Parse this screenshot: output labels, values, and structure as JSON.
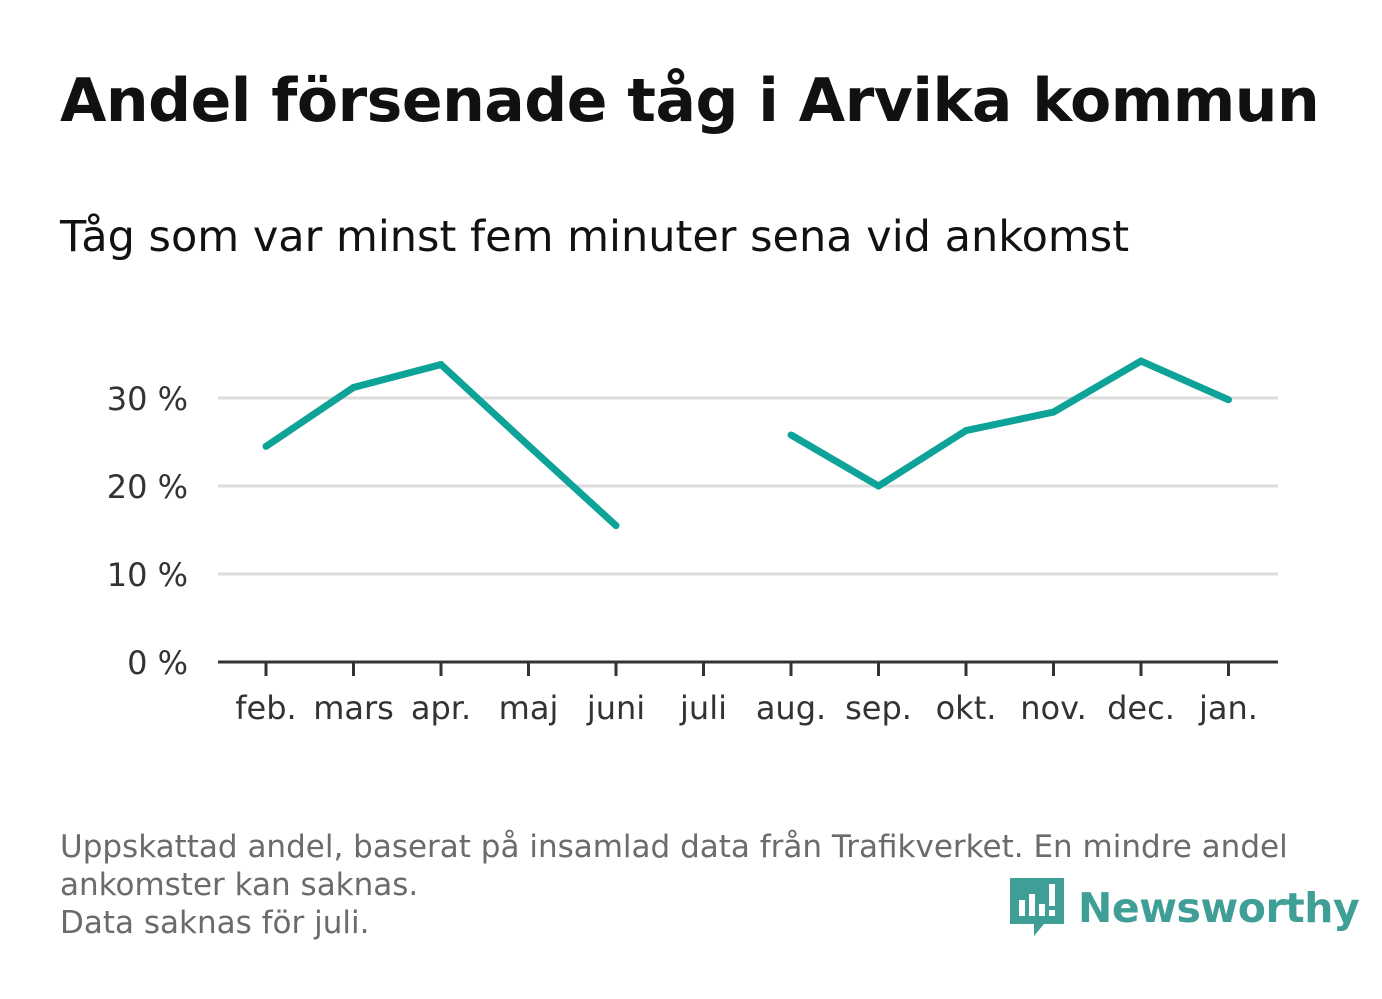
{
  "title": "Andel försenade tåg i Arvika kommun",
  "subtitle": "Tåg som var minst fem minuter sena vid ankomst",
  "footnote": {
    "line1": "Uppskattad andel, baserat på insamlad data från Trafikverket. En mindre andel",
    "line2": "ankomster kan saknas.",
    "line3": "Data saknas för juli."
  },
  "brand": {
    "name": "Newsworthy",
    "icon": "newsworthy-logo-icon",
    "color": "#3f9f97"
  },
  "colors": {
    "line": "#0da399",
    "grid": "#dddddd",
    "axis": "#333333"
  },
  "chart_data": {
    "type": "line",
    "title": "Andel försenade tåg i Arvika kommun",
    "subtitle": "Tåg som var minst fem minuter sena vid ankomst",
    "xlabel": "",
    "ylabel": "",
    "categories": [
      "feb.",
      "mars",
      "apr.",
      "maj",
      "juni",
      "juli",
      "aug.",
      "sep.",
      "okt.",
      "nov.",
      "dec.",
      "jan."
    ],
    "values": [
      24.5,
      31.2,
      33.8,
      24.6,
      15.5,
      null,
      25.8,
      20.0,
      26.3,
      28.4,
      34.2,
      29.8
    ],
    "yticks": [
      0,
      10,
      20,
      30
    ],
    "ytick_labels": [
      "0 %",
      "10 %",
      "20 %",
      "30 %"
    ],
    "ylim": [
      0,
      35
    ],
    "grid": true,
    "legend": "none"
  }
}
